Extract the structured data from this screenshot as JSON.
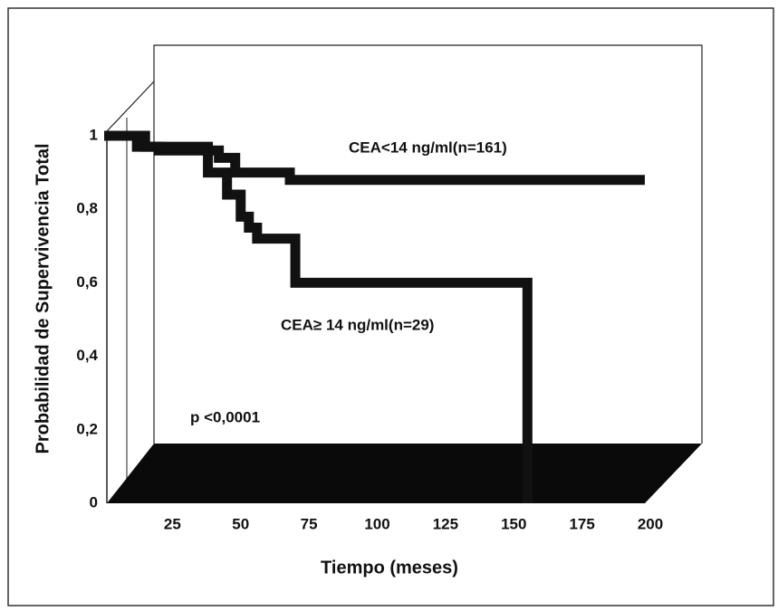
{
  "chart_data": {
    "type": "step",
    "xlabel": "Tiempo (meses)",
    "ylabel": "Probabilidad de Supervivencia Total",
    "annotations": [
      "p <0,0001"
    ],
    "xlim": [
      0,
      200
    ],
    "ylim": [
      0,
      1
    ],
    "xticks": [
      25,
      50,
      75,
      100,
      125,
      150,
      175,
      200
    ],
    "yticks": [
      0,
      {
        "value": 0.2,
        "label": "0,2"
      },
      {
        "value": 0.4,
        "label": "0,4"
      },
      {
        "value": 0.6,
        "label": "0,6"
      },
      {
        "value": 0.8,
        "label": "0,8"
      },
      1
    ],
    "grid": false,
    "series": [
      {
        "name": "CEA<14 ng/ml(n=161)",
        "color": "#111111",
        "x": [
          0,
          12,
          20,
          42,
          48,
          68,
          198
        ],
        "values": [
          1,
          0.97,
          0.96,
          0.94,
          0.9,
          0.88,
          0.88
        ]
      },
      {
        "name": "CEA≥ 14 ng/ml(n=29)",
        "color": "#111111",
        "x": [
          0,
          15,
          38,
          45,
          50,
          53,
          56,
          70,
          155
        ],
        "values": [
          1,
          0.97,
          0.9,
          0.84,
          0.78,
          0.75,
          0.72,
          0.6,
          0
        ]
      }
    ]
  }
}
